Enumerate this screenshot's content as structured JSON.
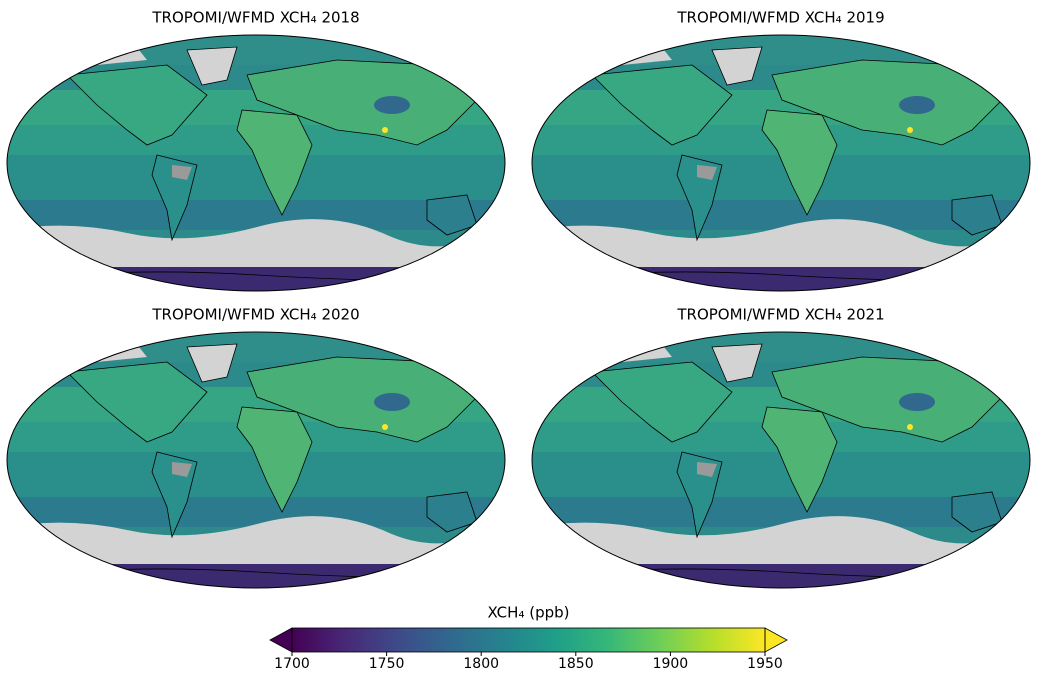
{
  "panels": [
    {
      "title": "TROPOMI/WFMD XCH₄ 2018"
    },
    {
      "title": "TROPOMI/WFMD XCH₄ 2019"
    },
    {
      "title": "TROPOMI/WFMD XCH₄ 2020"
    },
    {
      "title": "TROPOMI/WFMD XCH₄ 2021"
    }
  ],
  "colorbar": {
    "label": "XCH₄ (ppb)",
    "lim": [
      1700,
      1950
    ],
    "ticks": [
      1700,
      1750,
      1800,
      1850,
      1900,
      1950
    ],
    "extend": "both",
    "colors": [
      "#440154",
      "#482878",
      "#3e4a89",
      "#31688e",
      "#26828e",
      "#1f9e89",
      "#35b779",
      "#6ece58",
      "#b5de2b",
      "#fde725"
    ]
  }
}
